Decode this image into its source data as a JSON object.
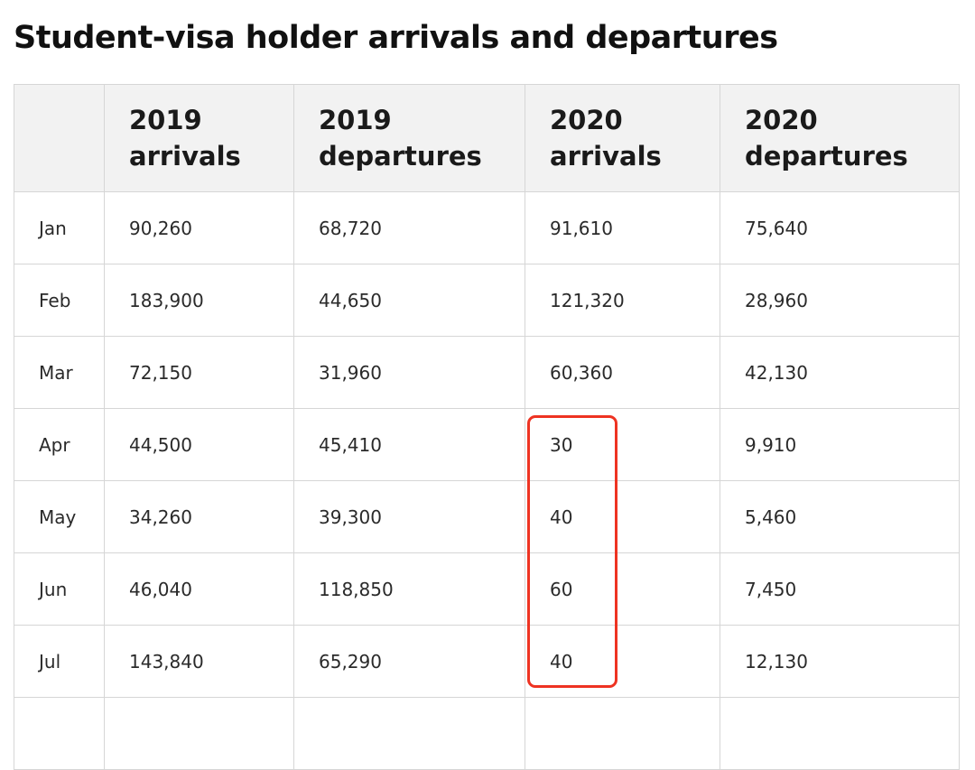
{
  "title": "Student-visa holder arrivals and departures",
  "table": {
    "headers": [
      {
        "line1": "",
        "line2": ""
      },
      {
        "line1": "2019",
        "line2": "arrivals"
      },
      {
        "line1": "2019",
        "line2": "departures"
      },
      {
        "line1": "2020",
        "line2": "arrivals"
      },
      {
        "line1": "2020",
        "line2": "departures"
      }
    ],
    "rows": [
      [
        "Jan",
        "90,260",
        "68,720",
        "91,610",
        "75,640"
      ],
      [
        "Feb",
        "183,900",
        "44,650",
        "121,320",
        "28,960"
      ],
      [
        "Mar",
        "72,150",
        "31,960",
        "60,360",
        "42,130"
      ],
      [
        "Apr",
        "44,500",
        "45,410",
        "30",
        "9,910"
      ],
      [
        "May",
        "34,260",
        "39,300",
        "40",
        "5,460"
      ],
      [
        "Jun",
        "46,040",
        "118,850",
        "60",
        "7,450"
      ],
      [
        "Jul",
        "143,840",
        "65,290",
        "40",
        "12,130"
      ],
      [
        "",
        "",
        "",
        "",
        ""
      ]
    ]
  },
  "annotation": {
    "highlight_color": "#ee3322",
    "highlighted_column": "2020 arrivals",
    "highlighted_months": [
      "Apr",
      "May",
      "Jun",
      "Jul"
    ]
  }
}
